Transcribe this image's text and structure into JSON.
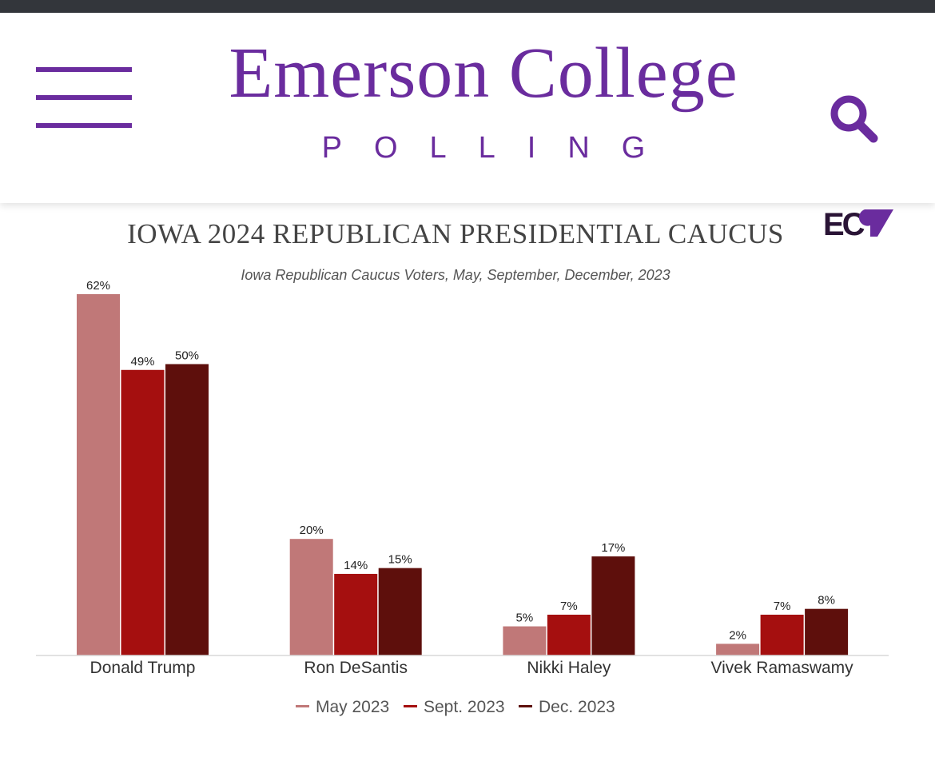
{
  "header": {
    "brand_title": "Emerson College",
    "brand_subtitle": "POLLING",
    "menu_icon": "hamburger-menu-icon",
    "search_icon": "search-icon",
    "accent_color": "#6a2c9e"
  },
  "chart_data": {
    "type": "bar",
    "title": "IOWA 2024 REPUBLICAN PRESIDENTIAL CAUCUS",
    "subtitle": "Iowa Republican Caucus Voters, May, September, December, 2023",
    "logo_text": "EC",
    "categories": [
      "Donald Trump",
      "Ron DeSantis",
      "Nikki Haley",
      "Vivek Ramaswamy"
    ],
    "series": [
      {
        "name": "May 2023",
        "values": [
          62,
          20,
          5,
          2
        ],
        "labels": [
          "62%",
          "20%",
          "5%",
          "2%"
        ],
        "color": "#c07878"
      },
      {
        "name": "Sept. 2023",
        "values": [
          49,
          14,
          7,
          7
        ],
        "labels": [
          "49%",
          "14%",
          "7%",
          "7%"
        ],
        "color": "#a50f0f"
      },
      {
        "name": "Dec. 2023",
        "values": [
          50,
          15,
          17,
          8
        ],
        "labels": [
          "50%",
          "15%",
          "17%",
          "8%"
        ],
        "color": "#5e0f0c"
      }
    ],
    "ylim": [
      0,
      62
    ],
    "xlabel": "",
    "ylabel": "",
    "grid": false,
    "legend_position": "bottom"
  }
}
